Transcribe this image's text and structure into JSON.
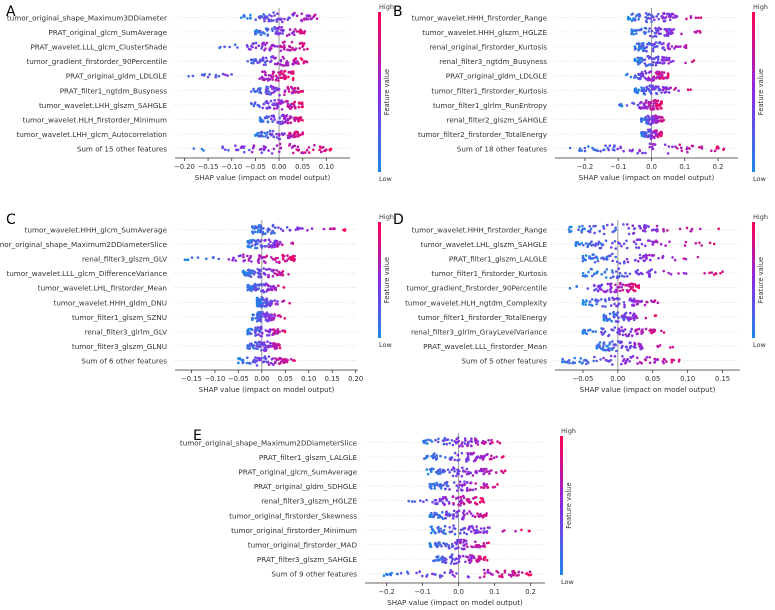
{
  "chart_data": [
    {
      "id": "A",
      "type": "scatter",
      "subtype": "shap-beeswarm",
      "panel_label": "A",
      "xlabel": "SHAP value (impact on model output)",
      "xlim": [
        -0.22,
        0.15
      ],
      "ticks": [
        -0.2,
        -0.15,
        -0.1,
        -0.05,
        0.0,
        0.05,
        0.1
      ],
      "tick_labels": [
        "−0.20",
        "−0.15",
        "−0.10",
        "−0.05",
        "0.00",
        "0.05",
        "0.10"
      ],
      "colorbar": {
        "title": "Feature value",
        "high": "High",
        "low": "Low"
      },
      "features": [
        {
          "name": "tumor_original_shape_Maximum3DDiameter",
          "min": -0.08,
          "max": 0.13
        },
        {
          "name": "PRAT_original_glcm_SumAverage",
          "min": -0.05,
          "max": 0.07
        },
        {
          "name": "PRAT_wavelet.LLL_glcm_ClusterShade",
          "min": -0.15,
          "max": 0.06
        },
        {
          "name": "tumor_gradient_firstorder_90Percentile",
          "min": -0.08,
          "max": 0.06
        },
        {
          "name": "PRAT_original_gldm_LDLGLE",
          "min": -0.2,
          "max": 0.03
        },
        {
          "name": "PRAT_filter1_ngtdm_Busyness",
          "min": -0.06,
          "max": 0.05
        },
        {
          "name": "tumor_wavelet.LHH_glszm_SAHGLE",
          "min": -0.07,
          "max": 0.05
        },
        {
          "name": "tumor_wavelet.HLH_firstorder_Minimum",
          "min": -0.04,
          "max": 0.05
        },
        {
          "name": "tumor_wavelet.LHH_glcm_Autocorrelation",
          "min": -0.05,
          "max": 0.05
        },
        {
          "name": "Sum of 15 other features",
          "min": -0.21,
          "max": 0.12
        }
      ]
    },
    {
      "id": "B",
      "type": "scatter",
      "subtype": "shap-beeswarm",
      "panel_label": "B",
      "xlabel": "SHAP value (impact on model output)",
      "xlim": [
        -0.29,
        0.26
      ],
      "ticks": [
        -0.2,
        -0.1,
        0.0,
        0.1,
        0.2
      ],
      "tick_labels": [
        "−0.2",
        "−0.1",
        "0.0",
        "0.1",
        "0.2"
      ],
      "colorbar": {
        "title": "Feature value",
        "high": "High",
        "low": "Low"
      },
      "features": [
        {
          "name": "tumor_wavelet.HHH_firstorder_Range",
          "min": -0.07,
          "max": 0.17
        },
        {
          "name": "tumor_wavelet.HHH_glszm_HGLZE",
          "min": -0.06,
          "max": 0.17
        },
        {
          "name": "renal_original_firstorder_Kurtosis",
          "min": -0.05,
          "max": 0.14
        },
        {
          "name": "renal_filter3_ngtdm_Busyness",
          "min": -0.05,
          "max": 0.14
        },
        {
          "name": "PRAT_original_gldm_LDLGLE",
          "min": -0.08,
          "max": 0.05
        },
        {
          "name": "tumor_filter1_firstorder_Kurtosis",
          "min": -0.05,
          "max": 0.12
        },
        {
          "name": "tumor_filter1_glrlm_RunEntropy",
          "min": -0.1,
          "max": 0.03
        },
        {
          "name": "renal_filter2_glszm_SAHGLE",
          "min": -0.03,
          "max": 0.04
        },
        {
          "name": "tumor_filter2_firstorder_TotalEnergy",
          "min": -0.03,
          "max": 0.03
        },
        {
          "name": "Sum of 18 other features",
          "min": -0.27,
          "max": 0.23
        }
      ]
    },
    {
      "id": "C",
      "type": "scatter",
      "subtype": "shap-beeswarm",
      "panel_label": "C",
      "xlabel": "SHAP value (impact on model output)",
      "xlim": [
        -0.185,
        0.205
      ],
      "ticks": [
        -0.15,
        -0.1,
        -0.05,
        0.0,
        0.05,
        0.1,
        0.15,
        0.2
      ],
      "tick_labels": [
        "−0.15",
        "−0.10",
        "−0.05",
        "0.00",
        "0.05",
        "0.10",
        "0.15",
        "0.20"
      ],
      "colorbar": {
        "title": "Feature value",
        "high": "High",
        "low": "Low"
      },
      "features": [
        {
          "name": "tumor_wavelet.HHH_glcm_SumAverage",
          "min": -0.02,
          "max": 0.18
        },
        {
          "name": "tumor_original_shape_Maximum2DDiameterSlice",
          "min": -0.03,
          "max": 0.07
        },
        {
          "name": "renal_filter3_glszm_GLV",
          "min": -0.17,
          "max": 0.07
        },
        {
          "name": "tumor_wavelet.LLL_glcm_DifferenceVariance",
          "min": -0.04,
          "max": 0.06
        },
        {
          "name": "tumor_wavelet.LHL_firstorder_Mean",
          "min": -0.03,
          "max": 0.05
        },
        {
          "name": "tumor_wavelet.HHH_gldm_DNU",
          "min": -0.01,
          "max": 0.06
        },
        {
          "name": "tumor_filter1_glszm_SZNU",
          "min": -0.02,
          "max": 0.05
        },
        {
          "name": "renal_filter3_glrlm_GLV",
          "min": -0.03,
          "max": 0.05
        },
        {
          "name": "tumor_filter3_glszm_GLNU",
          "min": -0.03,
          "max": 0.05
        },
        {
          "name": "Sum of 6 other features",
          "min": -0.05,
          "max": 0.07
        }
      ]
    },
    {
      "id": "D",
      "type": "scatter",
      "subtype": "shap-beeswarm",
      "panel_label": "D",
      "xlabel": "SHAP value (impact on model output)",
      "xlim": [
        -0.09,
        0.175
      ],
      "ticks": [
        -0.05,
        0.0,
        0.05,
        0.1,
        0.15
      ],
      "tick_labels": [
        "−0.05",
        "0.00",
        "0.05",
        "0.10",
        "0.15"
      ],
      "colorbar": {
        "title": "Feature value",
        "high": "High",
        "low": "Low"
      },
      "features": [
        {
          "name": "tumor_wavelet.HHH_firstorder_Range",
          "min": -0.07,
          "max": 0.15
        },
        {
          "name": "tumor_wavelet.LHL_glszm_SAHGLE",
          "min": -0.06,
          "max": 0.14
        },
        {
          "name": "PRAT_filter1_glszm_LALGLE",
          "min": -0.05,
          "max": 0.13
        },
        {
          "name": "tumor_filter1_firstorder_Kurtosis",
          "min": -0.05,
          "max": 0.16
        },
        {
          "name": "tumor_gradient_firstorder_90Percentile",
          "min": -0.07,
          "max": 0.03
        },
        {
          "name": "tumor_wavelet.HLH_ngtdm_Complexity",
          "min": -0.05,
          "max": 0.09
        },
        {
          "name": "tumor_filter1_firstorder_TotalEnergy",
          "min": -0.02,
          "max": 0.06
        },
        {
          "name": "renal_filter3_glrlm_GrayLevelVariance",
          "min": -0.05,
          "max": 0.07
        },
        {
          "name": "PRAT_wavelet.LLL_firstorder_Mean",
          "min": -0.03,
          "max": 0.08
        },
        {
          "name": "Sum of 5 other features",
          "min": -0.08,
          "max": 0.1
        }
      ]
    },
    {
      "id": "E",
      "type": "scatter",
      "subtype": "shap-beeswarm",
      "panel_label": "E",
      "xlabel": "SHAP value (impact on model output)",
      "xlim": [
        -0.26,
        0.24
      ],
      "ticks": [
        -0.2,
        -0.1,
        0.0,
        0.1,
        0.2
      ],
      "tick_labels": [
        "−0.2",
        "−0.1",
        "0.0",
        "0.1",
        "0.2"
      ],
      "colorbar": {
        "title": "Feature value",
        "high": "High",
        "low": "Low"
      },
      "features": [
        {
          "name": "tumor_original_shape_Maximum2DDiameterSlice",
          "min": -0.1,
          "max": 0.13
        },
        {
          "name": "PRAT_filter1_glszm_LALGLE",
          "min": -0.1,
          "max": 0.15
        },
        {
          "name": "PRAT_original_glcm_SumAverage",
          "min": -0.09,
          "max": 0.14
        },
        {
          "name": "PRAT_original_gldm_SDHGLE",
          "min": -0.08,
          "max": 0.11
        },
        {
          "name": "renal_filter3_glszm_HGLZE",
          "min": -0.15,
          "max": 0.07
        },
        {
          "name": "tumor_original_firstorder_Skewness",
          "min": -0.08,
          "max": 0.09
        },
        {
          "name": "tumor_original_firstorder_Minimum",
          "min": -0.08,
          "max": 0.2
        },
        {
          "name": "tumor_original_firstorder_MAD",
          "min": -0.08,
          "max": 0.09
        },
        {
          "name": "PRAT_filter3_glszm_SAHGLE",
          "min": -0.07,
          "max": 0.09
        },
        {
          "name": "Sum of 9 other features",
          "min": -0.23,
          "max": 0.21
        }
      ]
    }
  ],
  "colors": {
    "high": "#ff0052",
    "mid": "#8a2be2",
    "low": "#1e88e5",
    "zero_line": "#999999",
    "text": "#333333"
  }
}
